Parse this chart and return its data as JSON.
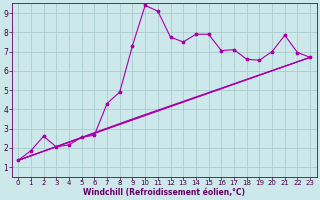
{
  "xlabel": "Windchill (Refroidissement éolien,°C)",
  "xlim": [
    -0.5,
    23.5
  ],
  "ylim": [
    0.5,
    9.5
  ],
  "xticks": [
    0,
    1,
    2,
    3,
    4,
    5,
    6,
    7,
    8,
    9,
    10,
    11,
    12,
    13,
    14,
    15,
    16,
    17,
    18,
    19,
    20,
    21,
    22,
    23
  ],
  "yticks": [
    1,
    2,
    3,
    4,
    5,
    6,
    7,
    8,
    9
  ],
  "bg_color": "#cce8ea",
  "line_color": "#aa00aa",
  "grid_color": "#aacccc",
  "spine_color": "#660066",
  "tick_color": "#440044",
  "line1_x": [
    0,
    1,
    2,
    3,
    4,
    5,
    6,
    7,
    8,
    9,
    10,
    11,
    12,
    13,
    14,
    15,
    16,
    17,
    18,
    19,
    20,
    21,
    22,
    23
  ],
  "line1_y": [
    1.35,
    1.85,
    2.6,
    2.05,
    2.15,
    2.55,
    2.65,
    4.3,
    4.9,
    7.3,
    9.4,
    9.1,
    7.75,
    7.5,
    7.9,
    7.9,
    7.05,
    7.1,
    6.6,
    6.55,
    7.0,
    7.85,
    6.95,
    6.7
  ],
  "line2_x": [
    0,
    23
  ],
  "line2_y": [
    1.35,
    6.7
  ],
  "line3_x": [
    0,
    9,
    23
  ],
  "line3_y": [
    1.35,
    3.5,
    6.7
  ],
  "line4_x": [
    0,
    7,
    23
  ],
  "line4_y": [
    1.35,
    3.0,
    6.7
  ],
  "tick_fontsize": 5.0,
  "xlabel_fontsize": 5.5,
  "marker": "*",
  "markersize": 2.5,
  "linewidth": 0.8
}
